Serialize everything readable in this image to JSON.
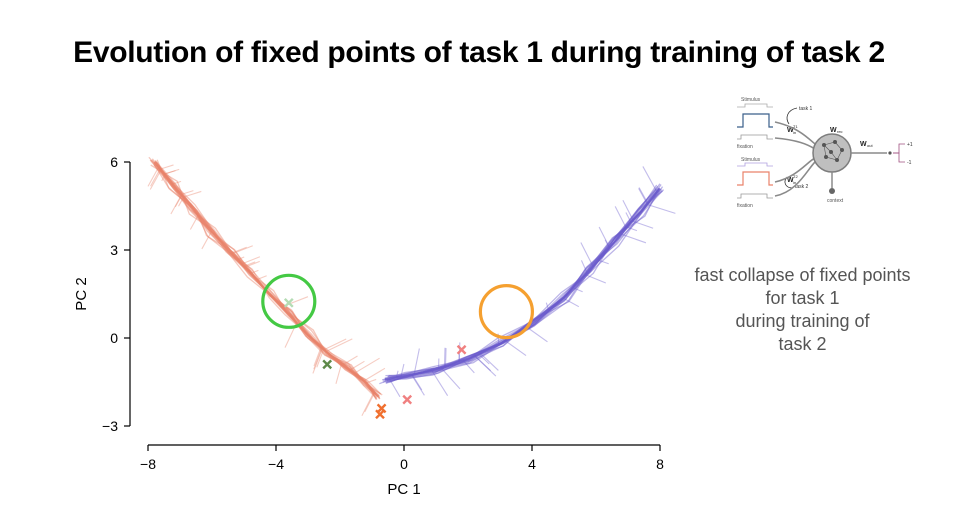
{
  "title": "Evolution of fixed points of task 1 during training of task 2",
  "annotation": {
    "lines": [
      "fast collapse of fixed points",
      "for task 1",
      "during training of",
      "task 2"
    ]
  },
  "schematic": {
    "stimulus_label_1": "Stimulus",
    "fixation_label_1": "fixation",
    "stimulus_label_2": "Stimulus",
    "fixation_label_2": "fixation",
    "task1_label": "task 1",
    "task2_label": "task 2",
    "w_in_1": "W",
    "w_in_1_sup": "T1",
    "w_in_1_sub": "in",
    "w_rec": "W",
    "w_rec_sub": "rec",
    "w_out": "W",
    "w_out_sub": "out",
    "w_in_2": "W",
    "w_in_2_sup": "T2",
    "w_in_2_sub": "in",
    "out_plus": "+1",
    "out_minus": "-1",
    "context_label": "context",
    "colors": {
      "task1_trace": "#3a5f8a",
      "task2_trace": "#e9826a",
      "line": "#8a8a8a"
    }
  },
  "chart_data": {
    "type": "line",
    "xlabel": "PC 1",
    "ylabel": "PC 2",
    "xlim": [
      -8,
      8
    ],
    "ylim": [
      -3,
      6
    ],
    "xticks": [
      -8,
      -4,
      0,
      4,
      8
    ],
    "xtick_labels": [
      "−8",
      "−4",
      "0",
      "4",
      "8"
    ],
    "yticks": [
      -3,
      0,
      3,
      6
    ],
    "ytick_labels": [
      "−3",
      "0",
      "3",
      "6"
    ],
    "grid": false,
    "series": [
      {
        "color": "#e9826a",
        "opacity": 0.45,
        "x": [
          -7.8,
          -7.2,
          -6.6,
          -6.0,
          -5.4,
          -4.8,
          -4.2,
          -3.6,
          -3.0,
          -2.4,
          -1.8,
          -1.2,
          -0.8
        ],
        "y": [
          6.0,
          5.2,
          4.4,
          3.6,
          2.9,
          2.2,
          1.5,
          0.8,
          0.1,
          -0.5,
          -1.0,
          -1.5,
          -2.0
        ]
      },
      {
        "color": "#6a5acd",
        "opacity": 0.45,
        "x": [
          -0.6,
          0.0,
          1.0,
          2.0,
          3.0,
          4.0,
          5.0,
          5.8,
          6.6,
          7.4,
          8.0
        ],
        "y": [
          -1.4,
          -1.3,
          -1.1,
          -0.7,
          -0.2,
          0.5,
          1.4,
          2.3,
          3.3,
          4.3,
          5.1
        ]
      }
    ],
    "markers": [
      {
        "x": -3.6,
        "y": 1.2,
        "symbol": "x",
        "color": "#b4dcb4"
      },
      {
        "x": -2.4,
        "y": -0.9,
        "symbol": "x",
        "color": "#5e8a4a"
      },
      {
        "x": 1.8,
        "y": -0.4,
        "symbol": "x",
        "color": "#f08080"
      },
      {
        "x": 0.1,
        "y": -2.1,
        "symbol": "x",
        "color": "#f08080"
      },
      {
        "x": -0.7,
        "y": -2.4,
        "symbol": "x",
        "color": "#f07030"
      },
      {
        "x": -0.75,
        "y": -2.6,
        "symbol": "x",
        "color": "#f07030"
      }
    ],
    "highlights": [
      {
        "x": -3.6,
        "y": 1.25,
        "color": "#44c944"
      },
      {
        "x": 3.2,
        "y": 0.9,
        "color": "#f5a030"
      }
    ]
  }
}
